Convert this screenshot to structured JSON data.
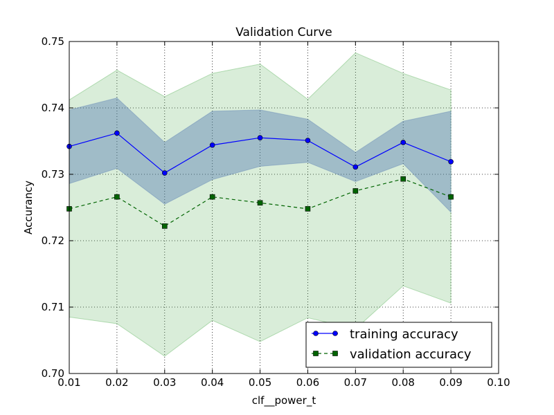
{
  "chart_data": {
    "type": "line",
    "title": "Validation Curve",
    "xlabel": "clf__power_t",
    "ylabel": "Accurancy",
    "xlim": [
      0.01,
      0.1
    ],
    "ylim": [
      0.7,
      0.75
    ],
    "x": [
      0.01,
      0.02,
      0.03,
      0.04,
      0.05,
      0.06,
      0.07,
      0.08,
      0.09
    ],
    "x_ticks": [
      0.01,
      0.02,
      0.03,
      0.04,
      0.05,
      0.06,
      0.07,
      0.08,
      0.09,
      0.1
    ],
    "x_tick_labels": [
      "0.01",
      "0.02",
      "0.03",
      "0.04",
      "0.05",
      "0.06",
      "0.07",
      "0.08",
      "0.09",
      "0.10"
    ],
    "y_ticks": [
      0.7,
      0.71,
      0.72,
      0.73,
      0.74,
      0.75
    ],
    "y_tick_labels": [
      "0.70",
      "0.71",
      "0.72",
      "0.73",
      "0.74",
      "0.75"
    ],
    "grid": true,
    "legend_position": "bottom-right",
    "series": [
      {
        "name": "training accuracy",
        "color": "#0000ff",
        "band_color": "#4c72b0",
        "marker": "circle",
        "linestyle": "solid",
        "values": [
          0.7342,
          0.7362,
          0.7302,
          0.7344,
          0.7355,
          0.7351,
          0.7311,
          0.7348,
          0.7319
        ],
        "upper": [
          0.7397,
          0.7415,
          0.7348,
          0.7395,
          0.7397,
          0.7383,
          0.7333,
          0.738,
          0.7395
        ],
        "lower": [
          0.7286,
          0.7309,
          0.7255,
          0.7292,
          0.7312,
          0.7318,
          0.7289,
          0.7316,
          0.7243
        ]
      },
      {
        "name": "validation accuracy",
        "color": "#006400",
        "band_color": "#3fa63f",
        "marker": "square",
        "linestyle": "dashed",
        "values": [
          0.7248,
          0.7266,
          0.7222,
          0.7266,
          0.7257,
          0.7248,
          0.7275,
          0.7293,
          0.7266
        ],
        "upper": [
          0.7412,
          0.7457,
          0.7417,
          0.7452,
          0.7466,
          0.7413,
          0.7483,
          0.7452,
          0.7427
        ],
        "lower": [
          0.7085,
          0.7075,
          0.7026,
          0.708,
          0.7048,
          0.7084,
          0.7067,
          0.7132,
          0.7106
        ]
      }
    ]
  }
}
